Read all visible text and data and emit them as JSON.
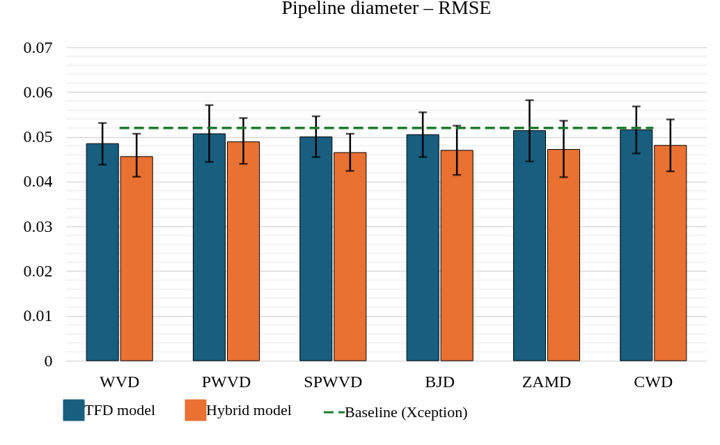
{
  "chart_data": {
    "type": "bar",
    "title": "Pipeline diameter – RMSE",
    "categories": [
      "WVD",
      "PWVD",
      "SPWVD",
      "BJD",
      "ZAMD",
      "CWD"
    ],
    "series": [
      {
        "name": "TFD model",
        "color": "#175e7f",
        "values": [
          0.0485,
          0.0507,
          0.05,
          0.0505,
          0.0514,
          0.0516
        ],
        "errors": [
          [
            0.0438,
            0.0531
          ],
          [
            0.0444,
            0.0571
          ],
          [
            0.0455,
            0.0546
          ],
          [
            0.0455,
            0.0555
          ],
          [
            0.0445,
            0.0582
          ],
          [
            0.0463,
            0.0568
          ]
        ]
      },
      {
        "name": "Hybrid model",
        "color": "#e97132",
        "values": [
          0.0456,
          0.0489,
          0.0465,
          0.047,
          0.0472,
          0.0481
        ],
        "errors": [
          [
            0.0411,
            0.0507
          ],
          [
            0.044,
            0.0542
          ],
          [
            0.0424,
            0.0507
          ],
          [
            0.0415,
            0.0525
          ],
          [
            0.041,
            0.0536
          ],
          [
            0.0423,
            0.0539
          ]
        ]
      },
      {
        "name": "Baseline (Xception)",
        "type": "line",
        "line_style": "dashed",
        "color": "#1e7a2e",
        "values": [
          0.052,
          0.052,
          0.052,
          0.052,
          0.052,
          0.052
        ]
      }
    ],
    "ylim": [
      0,
      0.07
    ],
    "yticks": [
      0,
      {
        "value": 0.002,
        "label": null
      },
      {
        "value": 0.004,
        "label": null
      },
      {
        "value": 0.006,
        "label": null
      },
      {
        "value": 0.008,
        "label": null
      },
      0.01,
      {
        "value": 0.012,
        "label": null
      },
      {
        "value": 0.014,
        "label": null
      },
      {
        "value": 0.016,
        "label": null
      },
      {
        "value": 0.018,
        "label": null
      },
      0.02,
      {
        "value": 0.022,
        "label": null
      },
      {
        "value": 0.024,
        "label": null
      },
      {
        "value": 0.026,
        "label": null
      },
      {
        "value": 0.028,
        "label": null
      },
      0.03,
      {
        "value": 0.032,
        "label": null
      },
      {
        "value": 0.034,
        "label": null
      },
      {
        "value": 0.036,
        "label": null
      },
      {
        "value": 0.038,
        "label": null
      },
      0.04,
      {
        "value": 0.042,
        "label": null
      },
      {
        "value": 0.044,
        "label": null
      },
      {
        "value": 0.046,
        "label": null
      },
      {
        "value": 0.048,
        "label": null
      },
      0.05,
      {
        "value": 0.052,
        "label": null
      },
      {
        "value": 0.054,
        "label": null
      },
      {
        "value": 0.056,
        "label": null
      },
      {
        "value": 0.058,
        "label": null
      },
      0.06,
      {
        "value": 0.062,
        "label": null
      },
      {
        "value": 0.064,
        "label": null
      },
      {
        "value": 0.066,
        "label": null
      },
      {
        "value": 0.068,
        "label": null
      },
      0.07
    ],
    "grid": "y",
    "legend": "bottom"
  }
}
